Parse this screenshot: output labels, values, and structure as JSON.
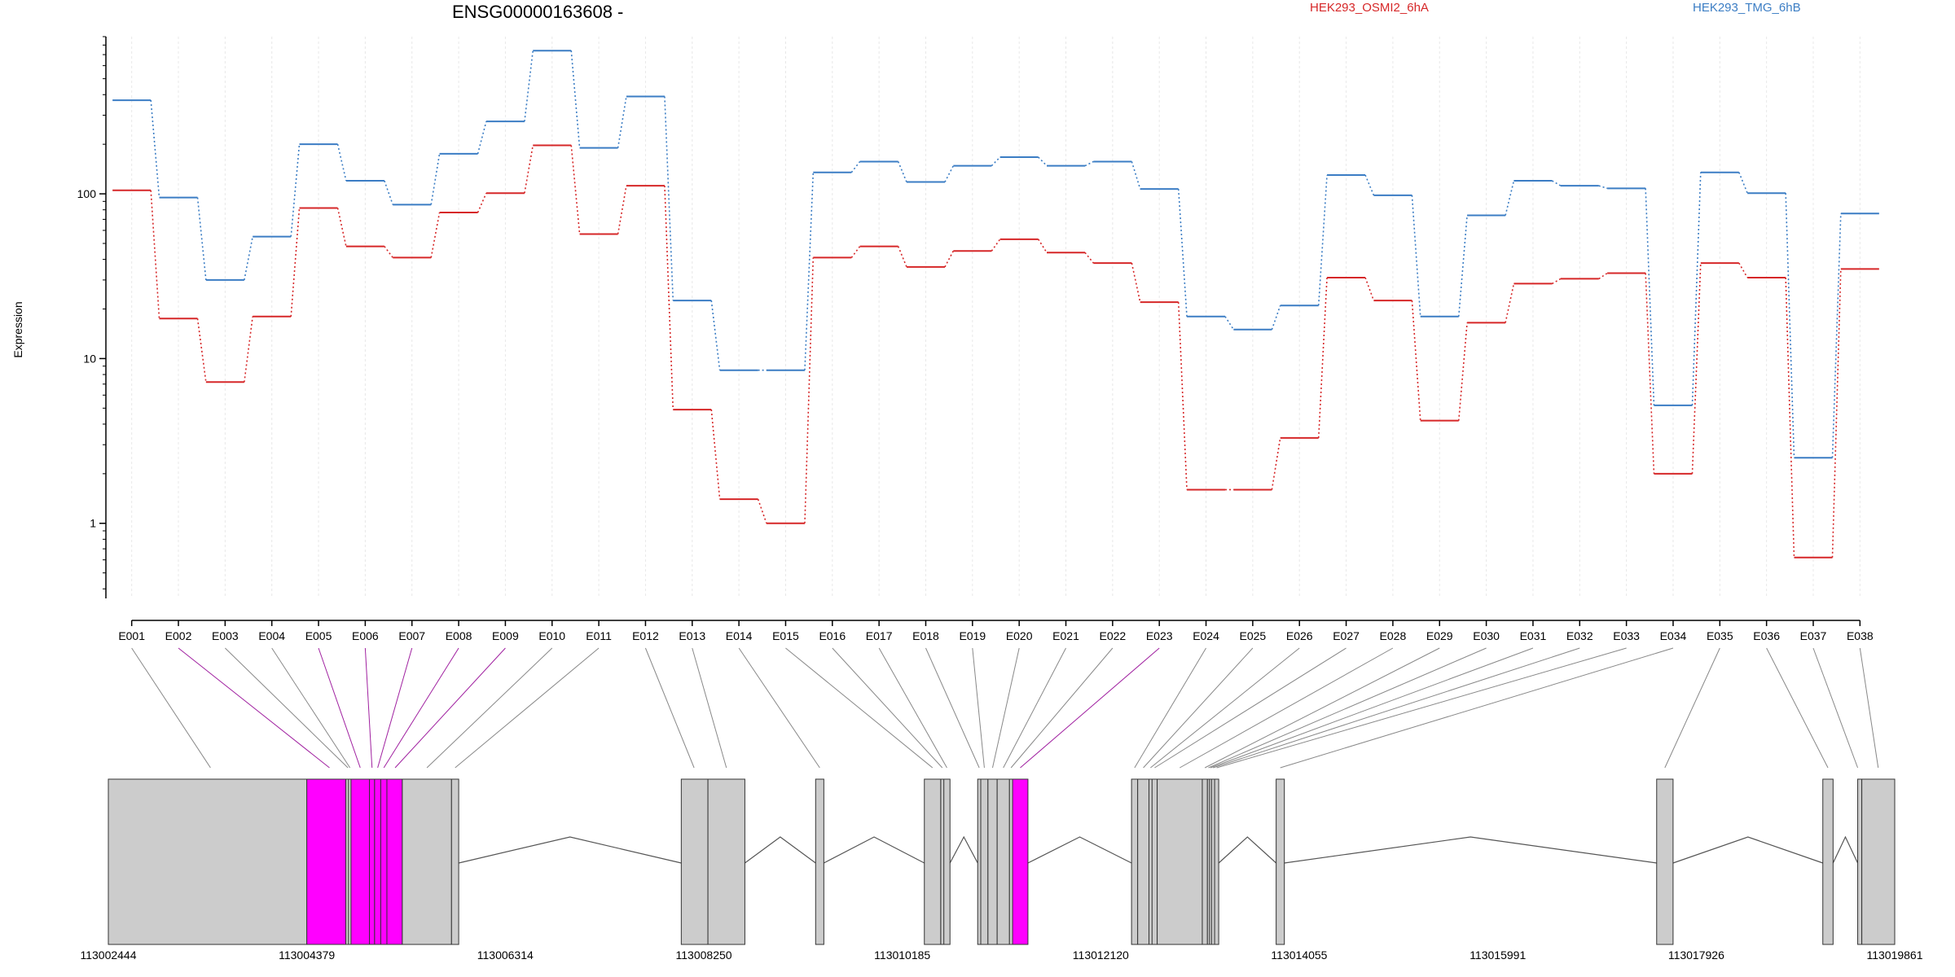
{
  "chart_data": {
    "type": "line",
    "title": "ENSG00000163608 -",
    "ylabel": "Expression",
    "yscale": "log",
    "ylim": [
      0.35,
      900
    ],
    "yticks": [
      "1",
      "10",
      "100"
    ],
    "legend_placement": "top",
    "categories": [
      "E001",
      "E002",
      "E003",
      "E004",
      "E005",
      "E006",
      "E007",
      "E008",
      "E009",
      "E010",
      "E011",
      "E012",
      "E013",
      "E014",
      "E015",
      "E016",
      "E017",
      "E018",
      "E019",
      "E020",
      "E021",
      "E022",
      "E023",
      "E024",
      "E025",
      "E026",
      "E027",
      "E028",
      "E029",
      "E030",
      "E031",
      "E032",
      "E033",
      "E034",
      "E035",
      "E036",
      "E037",
      "E038"
    ],
    "series": [
      {
        "name": "HEK293_OSMI2_6hA",
        "color": "#d62728",
        "values": [
          105,
          17.5,
          7.2,
          18,
          82,
          48,
          41,
          77,
          101,
          197,
          57,
          112,
          4.9,
          1.4,
          1.0,
          41,
          48,
          36,
          45,
          53,
          44,
          38,
          22,
          1.6,
          1.6,
          3.3,
          31,
          22.5,
          4.2,
          16.5,
          28.5,
          30.5,
          33,
          2.0,
          38,
          31,
          0.62,
          35
        ]
      },
      {
        "name": "HEK293_TMG_6hB",
        "color": "#3b7dc4",
        "values": [
          370,
          95,
          30,
          55,
          200,
          120,
          86,
          175,
          275,
          740,
          190,
          390,
          22.5,
          8.5,
          8.5,
          135,
          157,
          118,
          148,
          167,
          148,
          157,
          107,
          18,
          15,
          21,
          130,
          98,
          18,
          74,
          120,
          112,
          108,
          5.2,
          135,
          101,
          2.5,
          76
        ]
      }
    ],
    "exons": [
      {
        "id": "E001",
        "start": 113002444,
        "end": 113004379,
        "highlight": false
      },
      {
        "id": "E002",
        "start": 113004379,
        "end": 113004760,
        "highlight": true
      },
      {
        "id": "E003",
        "start": 113004760,
        "end": 113004785,
        "highlight": false
      },
      {
        "id": "E004",
        "start": 113004785,
        "end": 113004810,
        "highlight": false
      },
      {
        "id": "E005",
        "start": 113004810,
        "end": 113004990,
        "highlight": true
      },
      {
        "id": "E006",
        "start": 113004990,
        "end": 113005040,
        "highlight": true
      },
      {
        "id": "E007",
        "start": 113005040,
        "end": 113005100,
        "highlight": true
      },
      {
        "id": "E008",
        "start": 113005100,
        "end": 113005160,
        "highlight": true
      },
      {
        "id": "E009",
        "start": 113005160,
        "end": 113005310,
        "highlight": true
      },
      {
        "id": "E010",
        "start": 113005310,
        "end": 113005790,
        "highlight": false
      },
      {
        "id": "E011",
        "start": 113005790,
        "end": 113005860,
        "highlight": false
      },
      {
        "id": "E012",
        "start": 113008030,
        "end": 113008290,
        "highlight": false
      },
      {
        "id": "E013",
        "start": 113008290,
        "end": 113008650,
        "highlight": false
      },
      {
        "id": "E014",
        "start": 113009340,
        "end": 113009420,
        "highlight": false
      },
      {
        "id": "E015",
        "start": 113010400,
        "end": 113010560,
        "highlight": false
      },
      {
        "id": "E016",
        "start": 113010560,
        "end": 113010590,
        "highlight": false
      },
      {
        "id": "E017",
        "start": 113010590,
        "end": 113010650,
        "highlight": false
      },
      {
        "id": "E018",
        "start": 113010920,
        "end": 113010950,
        "highlight": false
      },
      {
        "id": "E019",
        "start": 113010950,
        "end": 113011020,
        "highlight": false
      },
      {
        "id": "E020",
        "start": 113011020,
        "end": 113011110,
        "highlight": false
      },
      {
        "id": "E021",
        "start": 113011110,
        "end": 113011230,
        "highlight": false
      },
      {
        "id": "E022",
        "start": 113011230,
        "end": 113011260,
        "highlight": false
      },
      {
        "id": "E023",
        "start": 113011260,
        "end": 113011410,
        "highlight": true
      },
      {
        "id": "E024",
        "start": 113012420,
        "end": 113012480,
        "highlight": false
      },
      {
        "id": "E025",
        "start": 113012480,
        "end": 113012590,
        "highlight": false
      },
      {
        "id": "E026",
        "start": 113012590,
        "end": 113012620,
        "highlight": false
      },
      {
        "id": "E027",
        "start": 113012620,
        "end": 113012670,
        "highlight": false
      },
      {
        "id": "E028",
        "start": 113012670,
        "end": 113013110,
        "highlight": false
      },
      {
        "id": "E029",
        "start": 113013110,
        "end": 113013160,
        "highlight": false
      },
      {
        "id": "E030",
        "start": 113013160,
        "end": 113013180,
        "highlight": false
      },
      {
        "id": "E031",
        "start": 113013180,
        "end": 113013200,
        "highlight": false
      },
      {
        "id": "E032",
        "start": 113013200,
        "end": 113013230,
        "highlight": false
      },
      {
        "id": "E033",
        "start": 113013230,
        "end": 113013270,
        "highlight": false
      },
      {
        "id": "E034",
        "start": 113013830,
        "end": 113013910,
        "highlight": false
      },
      {
        "id": "E035",
        "start": 113017540,
        "end": 113017700,
        "highlight": false
      },
      {
        "id": "E036",
        "start": 113019160,
        "end": 113019260,
        "highlight": false
      },
      {
        "id": "E037",
        "start": 113019500,
        "end": 113019500,
        "highlight": false
      },
      {
        "id": "E038",
        "start": 113019540,
        "end": 113019861,
        "highlight": false
      }
    ],
    "exon_links": [
      {
        "exon": "E001",
        "target": 113003440
      },
      {
        "exon": "E002",
        "target": 113004600
      },
      {
        "exon": "E003",
        "target": 113004780
      },
      {
        "exon": "E004",
        "target": 113004800
      },
      {
        "exon": "E005",
        "target": 113004900
      },
      {
        "exon": "E006",
        "target": 113005015
      },
      {
        "exon": "E007",
        "target": 113005070
      },
      {
        "exon": "E008",
        "target": 113005130
      },
      {
        "exon": "E009",
        "target": 113005240
      },
      {
        "exon": "E010",
        "target": 113005550
      },
      {
        "exon": "E011",
        "target": 113005825
      },
      {
        "exon": "E012",
        "target": 113008155
      },
      {
        "exon": "E013",
        "target": 113008470
      },
      {
        "exon": "E014",
        "target": 113009380
      },
      {
        "exon": "E015",
        "target": 113010480
      },
      {
        "exon": "E016",
        "target": 113010575
      },
      {
        "exon": "E017",
        "target": 113010620
      },
      {
        "exon": "E018",
        "target": 113010935
      },
      {
        "exon": "E019",
        "target": 113010985
      },
      {
        "exon": "E020",
        "target": 113011065
      },
      {
        "exon": "E021",
        "target": 113011170
      },
      {
        "exon": "E022",
        "target": 113011245
      },
      {
        "exon": "E023",
        "target": 113011335
      },
      {
        "exon": "E024",
        "target": 113012450
      },
      {
        "exon": "E025",
        "target": 113012535
      },
      {
        "exon": "E026",
        "target": 113012605
      },
      {
        "exon": "E027",
        "target": 113012645
      },
      {
        "exon": "E028",
        "target": 113012890
      },
      {
        "exon": "E029",
        "target": 113013135
      },
      {
        "exon": "E030",
        "target": 113013170
      },
      {
        "exon": "E031",
        "target": 113013190
      },
      {
        "exon": "E032",
        "target": 113013215
      },
      {
        "exon": "E033",
        "target": 113013250
      },
      {
        "exon": "E034",
        "target": 113013870
      },
      {
        "exon": "E035",
        "target": 113017620
      },
      {
        "exon": "E036",
        "target": 113019210
      },
      {
        "exon": "E037",
        "target": 113019500
      },
      {
        "exon": "E038",
        "target": 113019700
      }
    ],
    "genomic_ticks": [
      113002444,
      113004379,
      113006314,
      113008250,
      113010185,
      113012120,
      113014055,
      113015991,
      113017926,
      113019861
    ],
    "genomic_range": [
      113002444,
      113019861
    ],
    "highlight_color": "#ff00ff",
    "exon_color": "#cccccc"
  }
}
